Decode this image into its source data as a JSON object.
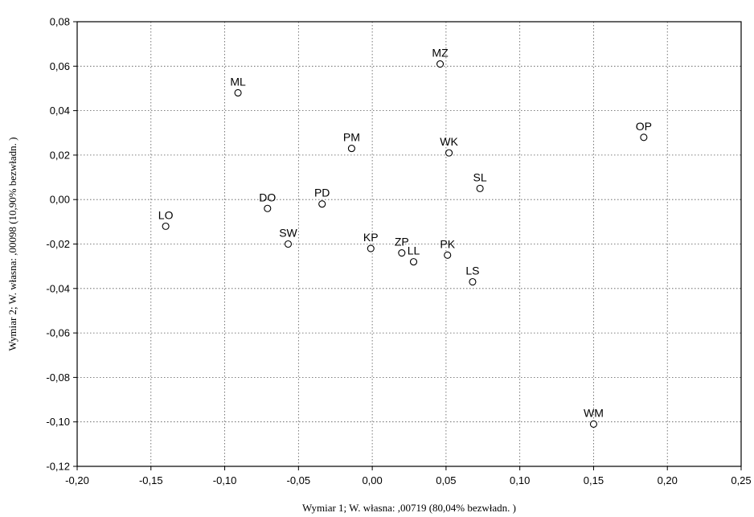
{
  "chart_data": {
    "type": "scatter",
    "xlabel": "Wymiar    1; W. własna:  ,00719 (80,04% bezwładn. )",
    "ylabel": "Wymiar    2; W. własna: ,00098 (10,90% bezwładn. )",
    "xlim": [
      -0.2,
      0.25
    ],
    "ylim": [
      -0.12,
      0.08
    ],
    "x_ticks": [
      -0.2,
      -0.15,
      -0.1,
      -0.05,
      0.0,
      0.05,
      0.1,
      0.15,
      0.2,
      0.25
    ],
    "y_ticks": [
      -0.12,
      -0.1,
      -0.08,
      -0.06,
      -0.04,
      -0.02,
      0.0,
      0.02,
      0.04,
      0.06,
      0.08
    ],
    "x_tick_labels": [
      "-0,20",
      "-0,15",
      "-0,10",
      "-0,05",
      "0,00",
      "0,05",
      "0,10",
      "0,15",
      "0,20",
      "0,25"
    ],
    "y_tick_labels": [
      "-0,12",
      "-0,10",
      "-0,08",
      "-0,06",
      "-0,04",
      "-0,02",
      "0,00",
      "0,02",
      "0,04",
      "0,06",
      "0,08"
    ],
    "grid": true,
    "points": [
      {
        "label": "MZ",
        "x": 0.046,
        "y": 0.061
      },
      {
        "label": "ML",
        "x": -0.091,
        "y": 0.048
      },
      {
        "label": "OP",
        "x": 0.184,
        "y": 0.028
      },
      {
        "label": "PM",
        "x": -0.014,
        "y": 0.023
      },
      {
        "label": "WK",
        "x": 0.052,
        "y": 0.021
      },
      {
        "label": "SL",
        "x": 0.073,
        "y": 0.005
      },
      {
        "label": "PD",
        "x": -0.034,
        "y": -0.002
      },
      {
        "label": "DO",
        "x": -0.071,
        "y": -0.004
      },
      {
        "label": "LO",
        "x": -0.14,
        "y": -0.012
      },
      {
        "label": "SW",
        "x": -0.057,
        "y": -0.02
      },
      {
        "label": "KP",
        "x": -0.001,
        "y": -0.022
      },
      {
        "label": "ZP",
        "x": 0.02,
        "y": -0.024
      },
      {
        "label": "LL",
        "x": 0.028,
        "y": -0.028
      },
      {
        "label": "PK",
        "x": 0.051,
        "y": -0.025
      },
      {
        "label": "LS",
        "x": 0.068,
        "y": -0.037
      },
      {
        "label": "WM",
        "x": 0.15,
        "y": -0.101
      }
    ]
  }
}
